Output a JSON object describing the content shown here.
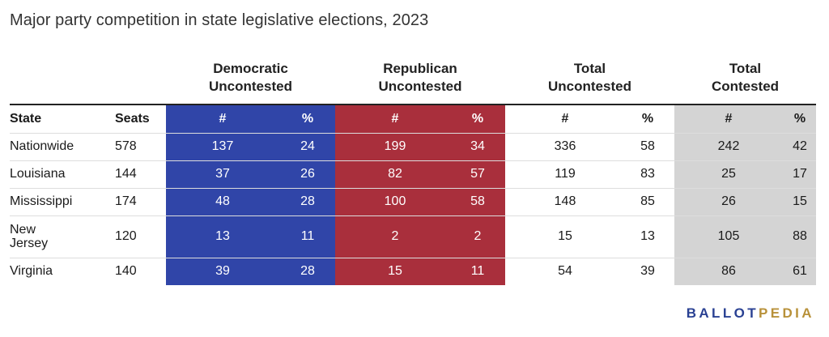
{
  "title": "Major party competition in state legislative elections, 2023",
  "column_groups": {
    "dem": [
      "Democratic",
      "Uncontested"
    ],
    "rep": [
      "Republican",
      "Uncontested"
    ],
    "total_unc": [
      "Total",
      "Uncontested"
    ],
    "total_con": [
      "Total",
      "Contested"
    ]
  },
  "headers": {
    "state": "State",
    "seats": "Seats",
    "num": "#",
    "pct": "%"
  },
  "colors": {
    "democratic": "#3045a8",
    "republican": "#a92f3c",
    "contested": "#d4d4d4"
  },
  "chart_data": {
    "type": "table",
    "title": "Major party competition in state legislative elections, 2023",
    "columns": [
      "State",
      "Seats",
      "Democratic Uncontested #",
      "Democratic Uncontested %",
      "Republican Uncontested #",
      "Republican Uncontested %",
      "Total Uncontested #",
      "Total Uncontested %",
      "Total Contested #",
      "Total Contested %"
    ],
    "rows": [
      {
        "state": "Nationwide",
        "seats": "578",
        "dem_n": "137",
        "dem_p": "24",
        "rep_n": "199",
        "rep_p": "34",
        "tu_n": "336",
        "tu_p": "58",
        "tc_n": "242",
        "tc_p": "42"
      },
      {
        "state": "Louisiana",
        "seats": "144",
        "dem_n": "37",
        "dem_p": "26",
        "rep_n": "82",
        "rep_p": "57",
        "tu_n": "119",
        "tu_p": "83",
        "tc_n": "25",
        "tc_p": "17"
      },
      {
        "state": "Mississippi",
        "seats": "174",
        "dem_n": "48",
        "dem_p": "28",
        "rep_n": "100",
        "rep_p": "58",
        "tu_n": "148",
        "tu_p": "85",
        "tc_n": "26",
        "tc_p": "15"
      },
      {
        "state": "New Jersey",
        "seats": "120",
        "dem_n": "13",
        "dem_p": "11",
        "rep_n": "2",
        "rep_p": "2",
        "tu_n": "15",
        "tu_p": "13",
        "tc_n": "105",
        "tc_p": "88"
      },
      {
        "state": "Virginia",
        "seats": "140",
        "dem_n": "39",
        "dem_p": "28",
        "rep_n": "15",
        "rep_p": "11",
        "tu_n": "54",
        "tu_p": "39",
        "tc_n": "86",
        "tc_p": "61"
      }
    ]
  },
  "logo": {
    "part1": "BALLOT",
    "part2": "PEDIA"
  }
}
